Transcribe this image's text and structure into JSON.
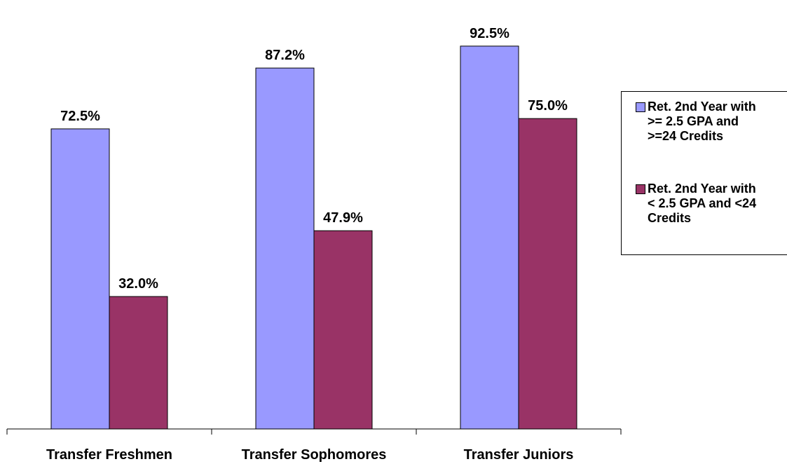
{
  "chart_data": {
    "type": "bar",
    "categories": [
      "Transfer Freshmen",
      "Transfer Sophomores",
      "Transfer Juniors"
    ],
    "series": [
      {
        "name": "Ret. 2nd Year with\n>= 2.5 GPA and\n>=24 Credits",
        "values": [
          72.5,
          87.2,
          92.5
        ],
        "labels": [
          "72.5%",
          "87.2%",
          "92.5%"
        ],
        "color": "#9999FF"
      },
      {
        "name": "Ret. 2nd Year with\n< 2.5 GPA and  <24\nCredits",
        "values": [
          32.0,
          47.9,
          75.0
        ],
        "labels": [
          "32.0%",
          "47.9%",
          "75.0%"
        ],
        "color": "#993366"
      }
    ],
    "title": "",
    "xlabel": "",
    "ylabel": "",
    "ylim": [
      0,
      100
    ],
    "grid": false,
    "legend": "right"
  }
}
